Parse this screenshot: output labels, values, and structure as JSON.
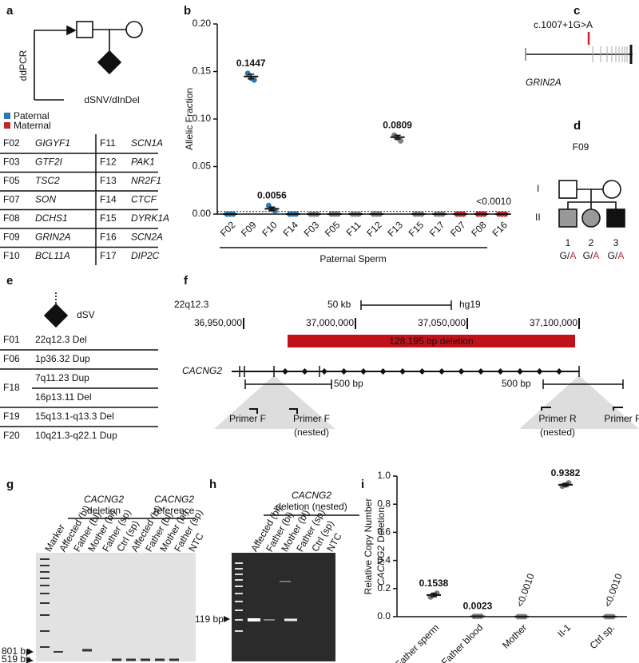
{
  "panel_labels": [
    "a",
    "b",
    "c",
    "d",
    "e",
    "f",
    "g",
    "h",
    "i"
  ],
  "panel_a": {
    "method": "ddPCR",
    "variant": "dSNV/dInDel",
    "legend": [
      {
        "name": "Paternal",
        "color": "#2a7ab8"
      },
      {
        "name": "Maternal",
        "color": "#c1272d"
      }
    ],
    "rows": [
      {
        "cells": [
          "F02",
          "GIGYF1",
          "F11",
          "SCN1A"
        ],
        "colors": [
          "#111111",
          "#2a7ab8",
          "#111111",
          "#111111"
        ]
      },
      {
        "cells": [
          "F03",
          "GTF2I",
          "F12",
          "PAK1"
        ],
        "colors": [
          "#111111",
          "#111111",
          "#111111",
          "#111111"
        ]
      },
      {
        "cells": [
          "F05",
          "TSC2",
          "F13",
          "NR2F1"
        ],
        "colors": [
          "#111111",
          "#111111",
          "#111111",
          "#111111"
        ]
      },
      {
        "cells": [
          "F07",
          "SON",
          "F14",
          "CTCF"
        ],
        "colors": [
          "#111111",
          "#c1272d",
          "#111111",
          "#2a7ab8"
        ]
      },
      {
        "cells": [
          "F08",
          "DCHS1",
          "F15",
          "DYRK1A"
        ],
        "colors": [
          "#111111",
          "#c1272d",
          "#111111",
          "#111111"
        ]
      },
      {
        "cells": [
          "F09",
          "GRIN2A",
          "F16",
          "SCN2A"
        ],
        "colors": [
          "#111111",
          "#2a7ab8",
          "#111111",
          "#c1272d"
        ]
      },
      {
        "cells": [
          "F10",
          "BCL11A",
          "F17",
          "DIP2C"
        ],
        "colors": [
          "#111111",
          "#2a7ab8",
          "#111111",
          "#111111"
        ]
      }
    ]
  },
  "chart_data": [
    {
      "type": "scatter",
      "y_label": "Allelic Fraction",
      "ylim": [
        0,
        0.2
      ],
      "yticks": [
        {
          "value": 0,
          "label": "0.00"
        },
        {
          "value": 0.05,
          "label": "0.05"
        },
        {
          "value": 0.1,
          "label": "0.10"
        },
        {
          "value": 0.15,
          "label": "0.15"
        },
        {
          "value": 0.2,
          "label": "0.20"
        }
      ],
      "categories": [
        "F02",
        "F09",
        "F10",
        "F14",
        "F03",
        "F05",
        "F11",
        "F12",
        "F13",
        "F15",
        "F17",
        "F07",
        "F08",
        "F16"
      ],
      "category_colors": [
        "#2a7ab8",
        "#2a7ab8",
        "#2a7ab8",
        "#2a7ab8",
        "#808080",
        "#808080",
        "#808080",
        "#808080",
        "#808080",
        "#808080",
        "#808080",
        "#c1272d",
        "#c1272d",
        "#c1272d"
      ],
      "values": [
        0,
        0.1447,
        0.0056,
        0,
        0,
        0,
        0,
        0,
        0.0809,
        0,
        0,
        0,
        0,
        0
      ],
      "errors": [
        0,
        0.0025,
        0.0018,
        0,
        0,
        0,
        0,
        0,
        0.002,
        0,
        0,
        0,
        0,
        0
      ],
      "replicates": [
        [
          0,
          0,
          0
        ],
        [
          0.148,
          0.143,
          0.141
        ],
        [
          0.009,
          0.005,
          0.003
        ],
        [
          0,
          0,
          0
        ],
        [
          0,
          0,
          0
        ],
        [
          0,
          0,
          0
        ],
        [
          0,
          0,
          0
        ],
        [
          0,
          0,
          0
        ],
        [
          0.083,
          0.08,
          0.077
        ],
        [
          0,
          0,
          0
        ],
        [
          0,
          0,
          0
        ],
        [
          0,
          0,
          0
        ],
        [
          0,
          0,
          0
        ],
        [
          0,
          0,
          0
        ]
      ],
      "value_labels": [
        null,
        "0.1447",
        "0.0056",
        null,
        null,
        null,
        null,
        null,
        "0.0809",
        null,
        null,
        null,
        null,
        null
      ],
      "threshold": 0.001,
      "threshold_label": "<0.0010",
      "group_label": "Paternal Sperm"
    },
    {
      "type": "scatter",
      "y_label": "Relative Copy Number",
      "y_label_gene": "CACNG2",
      "y_label_suffix": "Deletion",
      "ylim": [
        0,
        1
      ],
      "yticks": [
        {
          "value": 0,
          "label": "0.0"
        },
        {
          "value": 0.2,
          "label": "0.2"
        },
        {
          "value": 0.4,
          "label": "0.4"
        },
        {
          "value": 0.6,
          "label": "0.6"
        },
        {
          "value": 0.8,
          "label": "0.8"
        },
        {
          "value": 1,
          "label": "1.0"
        }
      ],
      "categories": [
        "Father sperm",
        "Father blood",
        "Mother",
        "II-1",
        "Ctrl sp."
      ],
      "color": "#808080",
      "values": [
        0.1538,
        0.0023,
        0.001,
        0.9382,
        0.001
      ],
      "errors": [
        0.012,
        0,
        0,
        0.01,
        0
      ],
      "replicates": [
        [
          0.14,
          0.155,
          0.166
        ],
        [
          0.002,
          0.0023,
          0.0026
        ],
        [
          0,
          0,
          0
        ],
        [
          0.928,
          0.936,
          0.951
        ],
        [
          0,
          0,
          0
        ]
      ],
      "value_labels": [
        "0.1538",
        "0.0023",
        "<0.0010",
        "0.9382",
        "<0.0010"
      ]
    }
  ],
  "panel_c": {
    "variant": "c.1007+1G>A",
    "gene": "GRIN2A"
  },
  "panel_d": {
    "family": "F09",
    "generations": [
      "I",
      "II"
    ],
    "children": [
      {
        "number": "1",
        "ref": "G/",
        "alt": "A"
      },
      {
        "number": "2",
        "ref": "G/",
        "alt": "A"
      },
      {
        "number": "3",
        "ref": "G/",
        "alt": "A"
      }
    ]
  },
  "panel_e": {
    "variant": "dSV",
    "rows": [
      {
        "family": "F01",
        "variants": [
          {
            "text": "22q12.3 Del",
            "color": "#2a7ab8"
          }
        ]
      },
      {
        "family": "F06",
        "variants": [
          {
            "text": "1p36.32 Dup",
            "color": "#2a7ab8"
          }
        ]
      },
      {
        "family": "F18",
        "variants": [
          {
            "text": "7q11.23 Dup",
            "color": "#c1272d"
          },
          {
            "text": "16p13.11 Del",
            "color": "#2a7ab8"
          }
        ]
      },
      {
        "family": "F19",
        "variants": [
          {
            "text": "15q13.1-q13.3 Del",
            "color": "#2a7ab8"
          }
        ]
      },
      {
        "family": "F20",
        "variants": [
          {
            "text": "10q21.3-q22.1 Dup",
            "color": "#2a7ab8"
          }
        ]
      }
    ]
  },
  "panel_f": {
    "band": "22q12.3",
    "scale": "50 kb",
    "build": "hg19",
    "coordinates": [
      "36,950,000",
      "37,000,000",
      "37,050,000",
      "37,100,000"
    ],
    "deletion": "128,195 bp deletion",
    "gene": "CACNG2",
    "zoom_scale": [
      "500 bp",
      "500 bp"
    ],
    "primers": [
      "Primer F",
      "Primer F",
      "(nested)",
      "Primer R",
      "(nested)",
      "Primer R"
    ]
  },
  "panel_g": {
    "groups": [
      {
        "gene": "CACNG2",
        "label": "deletion"
      },
      {
        "gene": "CACNG2",
        "label": "reference"
      }
    ],
    "lanes": [
      "Marker",
      "Affected (bl)",
      "Father (bl)",
      "Mother (bl)",
      "Father (sp)",
      "Ctrl (sp)",
      "Affected (bl)",
      "Father (bl)",
      "Mother (bl)",
      "Father (sp)",
      "NTC"
    ],
    "sizes": [
      "801 bp",
      "519 bp"
    ]
  },
  "panel_h": {
    "gene": "CACNG2",
    "label": "deletion (nested)",
    "lanes": [
      "Affected (bl)",
      "Father (bl)",
      "Mother (bl)",
      "Father (sp)",
      "Ctrl (sp)",
      "NTC"
    ],
    "size": "119 bp"
  }
}
